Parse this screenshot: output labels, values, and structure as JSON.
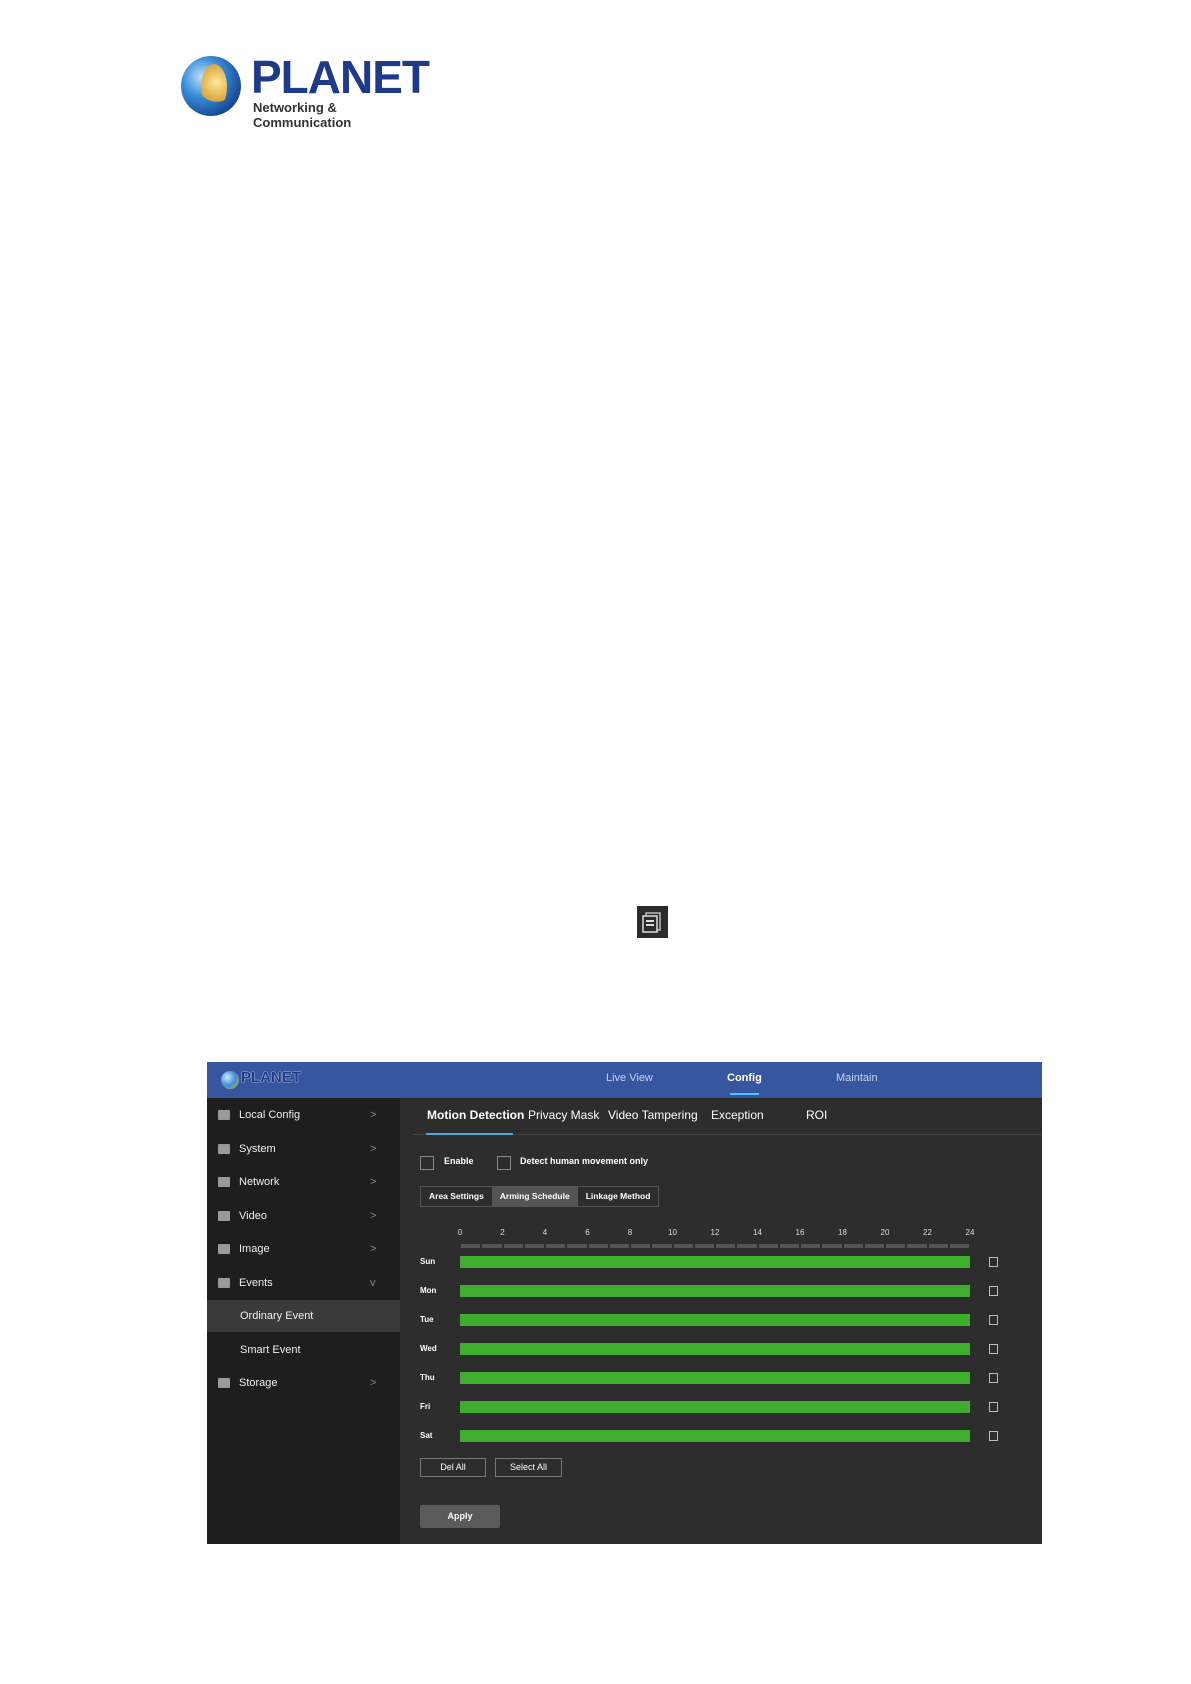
{
  "logo": {
    "brand": "PLANET",
    "tagline": "Networking & Communication"
  },
  "copy_icon": "copy-icon",
  "header": {
    "nav": [
      "Live View",
      "Config",
      "Maintain"
    ],
    "active": "Config",
    "color": "#3656a0"
  },
  "sidebar": {
    "items": [
      {
        "label": "Local Config",
        "icon": "monitor-icon",
        "chevron": ">"
      },
      {
        "label": "System",
        "icon": "system-icon",
        "chevron": ">"
      },
      {
        "label": "Network",
        "icon": "globe-icon",
        "chevron": ">"
      },
      {
        "label": "Video",
        "icon": "video-icon",
        "chevron": ">"
      },
      {
        "label": "Image",
        "icon": "image-icon",
        "chevron": ">"
      },
      {
        "label": "Events",
        "icon": "events-icon",
        "chevron": "v"
      },
      {
        "label": "Ordinary Event",
        "sub": true,
        "selected": true
      },
      {
        "label": "Smart Event",
        "sub": true
      },
      {
        "label": "Storage",
        "icon": "storage-icon",
        "chevron": ">"
      }
    ]
  },
  "tabs": [
    "Motion Detection",
    "Privacy Mask",
    "Video Tampering",
    "Exception",
    "ROI"
  ],
  "options": {
    "enable": "Enable",
    "human": "Detect human movement only"
  },
  "steps": [
    "Area Settings",
    "Arming Schedule",
    "Linkage Method"
  ],
  "schedule": {
    "hours": [
      "0",
      "2",
      "4",
      "6",
      "8",
      "10",
      "12",
      "14",
      "16",
      "18",
      "20",
      "22",
      "24"
    ],
    "days": [
      "Sun",
      "Mon",
      "Tue",
      "Wed",
      "Thu",
      "Fri",
      "Sat"
    ],
    "armed_range": [
      0,
      24
    ],
    "bar_color": "#3fae2f"
  },
  "buttons": {
    "del_all": "Del All",
    "select_all": "Select All",
    "apply": "Apply"
  }
}
